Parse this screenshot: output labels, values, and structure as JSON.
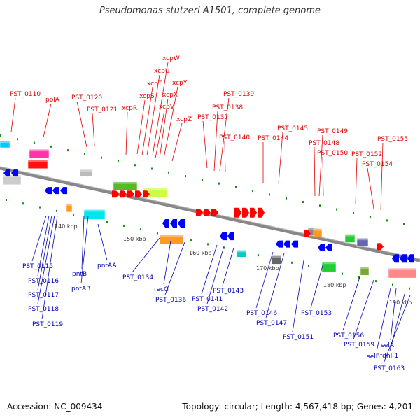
{
  "title": "Pseudomonas stutzeri A1501, complete genome",
  "footer": {
    "accession": "Accession: NC_009434",
    "summary": "Topology: circular; Length: 4,567,418 bp; Genes: 4,201"
  },
  "colors": {
    "forward_label": "#e00000",
    "reverse_label": "#0000b4",
    "forward_arrow": "#ff0000",
    "reverse_arrow": "#0000ff",
    "backbone": "#888888",
    "tick": "#1a8a1a"
  },
  "kbp_marks": [
    "140 kbp",
    "150 kbp",
    "160 kbp",
    "170 kbp",
    "180 kbp",
    "190 kbp"
  ],
  "top_labels": [
    "PST_0110",
    "polA",
    "PST_0120",
    "PST_0121",
    "xcpR",
    "xcpS",
    "xcpT",
    "xcpU",
    "xcpW",
    "xcpV",
    "xcpX",
    "xcpY",
    "xcpZ",
    "PST_0137",
    "PST_0138",
    "PST_0139",
    "PST_0140",
    "PST_0144",
    "PST_0145",
    "PST_0148",
    "PST_0149",
    "PST_0150",
    "PST_0152",
    "PST_0154",
    "PST_0155"
  ],
  "bottom_labels": [
    "PST_0115",
    "PST_0116",
    "PST_0117",
    "PST_0118",
    "PST_0119",
    "pntB",
    "pntAB",
    "pntAA",
    "PST_0134",
    "recG",
    "PST_0136",
    "PST_0141",
    "PST_0142",
    "PST_0143",
    "PST_0146",
    "PST_0147",
    "PST_0151",
    "PST_0153",
    "PST_0156",
    "PST_0159",
    "selB",
    "selA",
    "fdnI-1",
    "PST_0163"
  ]
}
